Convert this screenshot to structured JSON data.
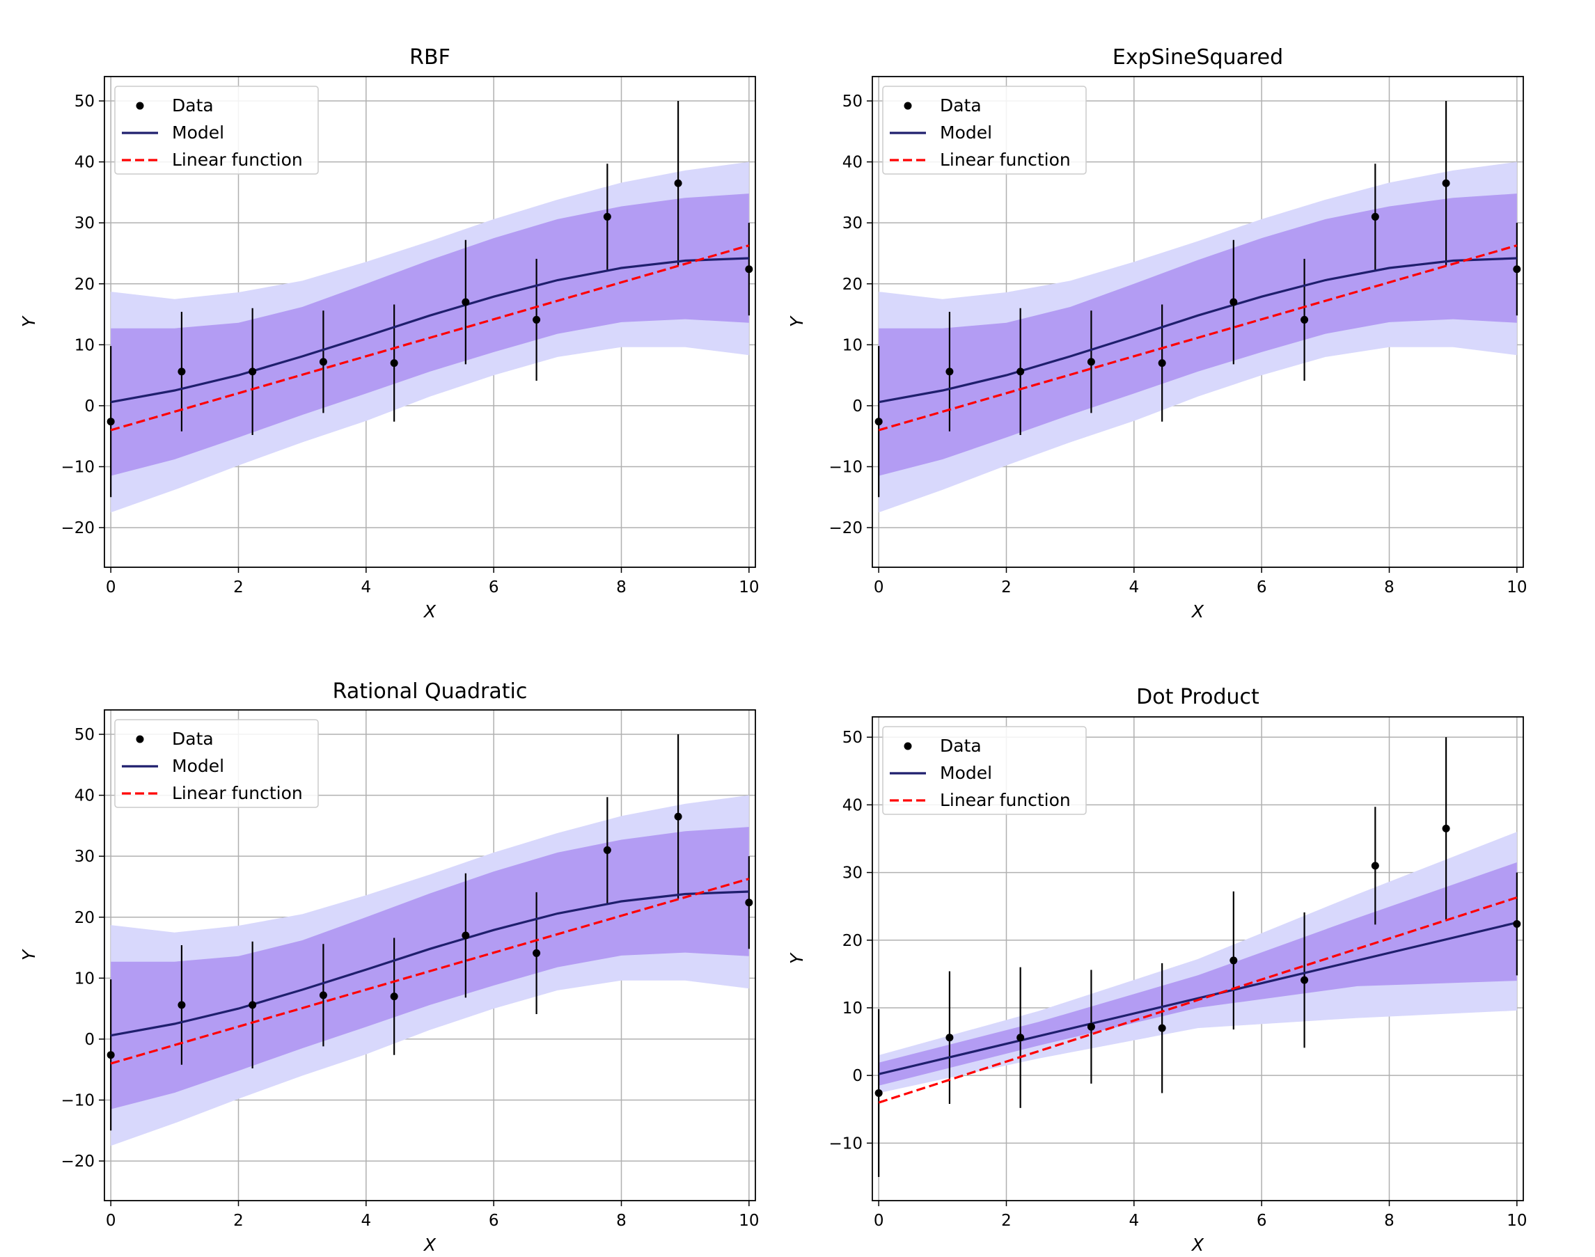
{
  "figure": {
    "rows": 2,
    "cols": 2
  },
  "colors": {
    "band_outer": "#d8d8fc",
    "band_inner": "#b39cf3",
    "model": "#1f1f6d",
    "linear": "#ff0000",
    "data": "#000000",
    "grid": "#b0b0b0"
  },
  "chart_data": [
    {
      "type": "line",
      "title": "RBF",
      "xlabel": "X",
      "ylabel": "Y",
      "xlim": [
        -0.1,
        10.1
      ],
      "ylim": [
        -26.5,
        54
      ],
      "xticks": [
        0,
        2,
        4,
        6,
        8,
        10
      ],
      "yticks": [
        -20,
        -10,
        0,
        10,
        20,
        30,
        40,
        50
      ],
      "grid": true,
      "legend_position": "upper-left",
      "legend": [
        "Data",
        "Model",
        "Linear function"
      ],
      "data_points": {
        "x": [
          0,
          1.11,
          2.22,
          3.33,
          4.44,
          5.56,
          6.67,
          7.78,
          8.89,
          10
        ],
        "y": [
          -2.6,
          5.6,
          5.6,
          7.2,
          7.0,
          17.0,
          14.1,
          31.0,
          36.5,
          22.4
        ],
        "yerr": [
          12.4,
          9.8,
          10.4,
          8.4,
          9.6,
          10.2,
          10.0,
          8.7,
          13.5,
          7.6
        ]
      },
      "model": {
        "x": [
          0,
          1,
          2,
          3,
          4,
          5,
          6,
          7,
          8,
          9,
          10
        ],
        "y": [
          0.6,
          2.5,
          5.0,
          8.1,
          11.4,
          14.8,
          17.9,
          20.6,
          22.6,
          23.8,
          24.2
        ]
      },
      "band_inner": {
        "x": [
          0,
          1,
          2,
          3,
          4,
          5,
          6,
          7,
          8,
          9,
          10
        ],
        "lower": [
          -11.5,
          -8.8,
          -5.2,
          -1.5,
          2.0,
          5.6,
          8.8,
          11.8,
          13.7,
          14.2,
          13.6
        ],
        "upper": [
          12.7,
          12.7,
          13.6,
          16.2,
          20.0,
          23.9,
          27.5,
          30.6,
          32.7,
          34.1,
          34.8
        ]
      },
      "band_outer": {
        "x": [
          0,
          1,
          2,
          3,
          4,
          5,
          6,
          7,
          8,
          9,
          10
        ],
        "lower": [
          -17.5,
          -13.8,
          -9.8,
          -6.0,
          -2.5,
          1.5,
          5.0,
          8.0,
          9.6,
          9.6,
          8.3
        ],
        "upper": [
          18.7,
          17.5,
          18.6,
          20.5,
          23.6,
          27.0,
          30.6,
          33.8,
          36.6,
          38.6,
          40.0
        ]
      },
      "linear": {
        "x": [
          0,
          10
        ],
        "y": [
          -4.0,
          26.3
        ]
      }
    },
    {
      "type": "line",
      "title": "ExpSineSquared",
      "xlabel": "X",
      "ylabel": "Y",
      "xlim": [
        -0.1,
        10.1
      ],
      "ylim": [
        -26.5,
        54
      ],
      "xticks": [
        0,
        2,
        4,
        6,
        8,
        10
      ],
      "yticks": [
        -20,
        -10,
        0,
        10,
        20,
        30,
        40,
        50
      ],
      "grid": true,
      "legend_position": "upper-left",
      "legend": [
        "Data",
        "Model",
        "Linear function"
      ],
      "data_points": {
        "x": [
          0,
          1.11,
          2.22,
          3.33,
          4.44,
          5.56,
          6.67,
          7.78,
          8.89,
          10
        ],
        "y": [
          -2.6,
          5.6,
          5.6,
          7.2,
          7.0,
          17.0,
          14.1,
          31.0,
          36.5,
          22.4
        ],
        "yerr": [
          12.4,
          9.8,
          10.4,
          8.4,
          9.6,
          10.2,
          10.0,
          8.7,
          13.5,
          7.6
        ]
      },
      "model": {
        "x": [
          0,
          1,
          2,
          3,
          4,
          5,
          6,
          7,
          8,
          9,
          10
        ],
        "y": [
          0.6,
          2.5,
          5.0,
          8.1,
          11.4,
          14.8,
          17.9,
          20.6,
          22.6,
          23.8,
          24.2
        ]
      },
      "band_inner": {
        "x": [
          0,
          1,
          2,
          3,
          4,
          5,
          6,
          7,
          8,
          9,
          10
        ],
        "lower": [
          -11.5,
          -8.8,
          -5.2,
          -1.5,
          2.0,
          5.6,
          8.8,
          11.8,
          13.7,
          14.2,
          13.6
        ],
        "upper": [
          12.7,
          12.7,
          13.6,
          16.2,
          20.0,
          23.9,
          27.5,
          30.6,
          32.7,
          34.1,
          34.8
        ]
      },
      "band_outer": {
        "x": [
          0,
          1,
          2,
          3,
          4,
          5,
          6,
          7,
          8,
          9,
          10
        ],
        "lower": [
          -17.5,
          -13.8,
          -9.8,
          -6.0,
          -2.5,
          1.5,
          5.0,
          8.0,
          9.6,
          9.6,
          8.3
        ],
        "upper": [
          18.7,
          17.5,
          18.6,
          20.5,
          23.6,
          27.0,
          30.6,
          33.8,
          36.6,
          38.6,
          40.0
        ]
      },
      "linear": {
        "x": [
          0,
          10
        ],
        "y": [
          -4.0,
          26.3
        ]
      }
    },
    {
      "type": "line",
      "title": "Rational Quadratic",
      "xlabel": "X",
      "ylabel": "Y",
      "xlim": [
        -0.1,
        10.1
      ],
      "ylim": [
        -26.5,
        54
      ],
      "xticks": [
        0,
        2,
        4,
        6,
        8,
        10
      ],
      "yticks": [
        -20,
        -10,
        0,
        10,
        20,
        30,
        40,
        50
      ],
      "grid": true,
      "legend_position": "upper-left",
      "legend": [
        "Data",
        "Model",
        "Linear function"
      ],
      "data_points": {
        "x": [
          0,
          1.11,
          2.22,
          3.33,
          4.44,
          5.56,
          6.67,
          7.78,
          8.89,
          10
        ],
        "y": [
          -2.6,
          5.6,
          5.6,
          7.2,
          7.0,
          17.0,
          14.1,
          31.0,
          36.5,
          22.4
        ],
        "yerr": [
          12.4,
          9.8,
          10.4,
          8.4,
          9.6,
          10.2,
          10.0,
          8.7,
          13.5,
          7.6
        ]
      },
      "model": {
        "x": [
          0,
          1,
          2,
          3,
          4,
          5,
          6,
          7,
          8,
          9,
          10
        ],
        "y": [
          0.6,
          2.5,
          5.0,
          8.1,
          11.4,
          14.8,
          17.9,
          20.6,
          22.6,
          23.8,
          24.2
        ]
      },
      "band_inner": {
        "x": [
          0,
          1,
          2,
          3,
          4,
          5,
          6,
          7,
          8,
          9,
          10
        ],
        "lower": [
          -11.5,
          -8.8,
          -5.2,
          -1.5,
          2.0,
          5.6,
          8.8,
          11.8,
          13.7,
          14.2,
          13.6
        ],
        "upper": [
          12.7,
          12.7,
          13.6,
          16.2,
          20.0,
          23.9,
          27.5,
          30.6,
          32.7,
          34.1,
          34.8
        ]
      },
      "band_outer": {
        "x": [
          0,
          1,
          2,
          3,
          4,
          5,
          6,
          7,
          8,
          9,
          10
        ],
        "lower": [
          -17.5,
          -13.8,
          -9.8,
          -6.0,
          -2.5,
          1.5,
          5.0,
          8.0,
          9.6,
          9.6,
          8.3
        ],
        "upper": [
          18.7,
          17.5,
          18.6,
          20.5,
          23.6,
          27.0,
          30.6,
          33.8,
          36.6,
          38.6,
          40.0
        ]
      },
      "linear": {
        "x": [
          0,
          10
        ],
        "y": [
          -4.0,
          26.3
        ]
      }
    },
    {
      "type": "line",
      "title": "Dot Product",
      "xlabel": "X",
      "ylabel": "Y",
      "xlim": [
        -0.1,
        10.1
      ],
      "ylim": [
        -18.5,
        53
      ],
      "xticks": [
        0,
        2,
        4,
        6,
        8,
        10
      ],
      "yticks": [
        -10,
        0,
        10,
        20,
        30,
        40,
        50
      ],
      "grid": true,
      "legend_position": "upper-left",
      "legend": [
        "Data",
        "Model",
        "Linear function"
      ],
      "data_points": {
        "x": [
          0,
          1.11,
          2.22,
          3.33,
          4.44,
          5.56,
          6.67,
          7.78,
          8.89,
          10
        ],
        "y": [
          -2.6,
          5.6,
          5.6,
          7.2,
          7.0,
          17.0,
          14.1,
          31.0,
          36.5,
          22.4
        ],
        "yerr": [
          12.4,
          9.8,
          10.4,
          8.4,
          9.6,
          10.2,
          10.0,
          8.7,
          13.5,
          7.6
        ]
      },
      "model": {
        "x": [
          0,
          10
        ],
        "y": [
          0.2,
          22.6
        ]
      },
      "band_inner": {
        "x": [
          0,
          2.5,
          5,
          7.5,
          10
        ],
        "lower": [
          -1.5,
          4.4,
          10.0,
          13.2,
          14.0
        ],
        "upper": [
          1.9,
          7.9,
          14.8,
          23.3,
          31.5
        ]
      },
      "band_outer": {
        "x": [
          0,
          2.5,
          5,
          7.5,
          10
        ],
        "lower": [
          -2.6,
          2.5,
          7.0,
          8.5,
          9.6
        ],
        "upper": [
          3.0,
          9.5,
          17.2,
          26.8,
          36.0
        ]
      },
      "linear": {
        "x": [
          0,
          10
        ],
        "y": [
          -4.0,
          26.3
        ]
      }
    }
  ]
}
